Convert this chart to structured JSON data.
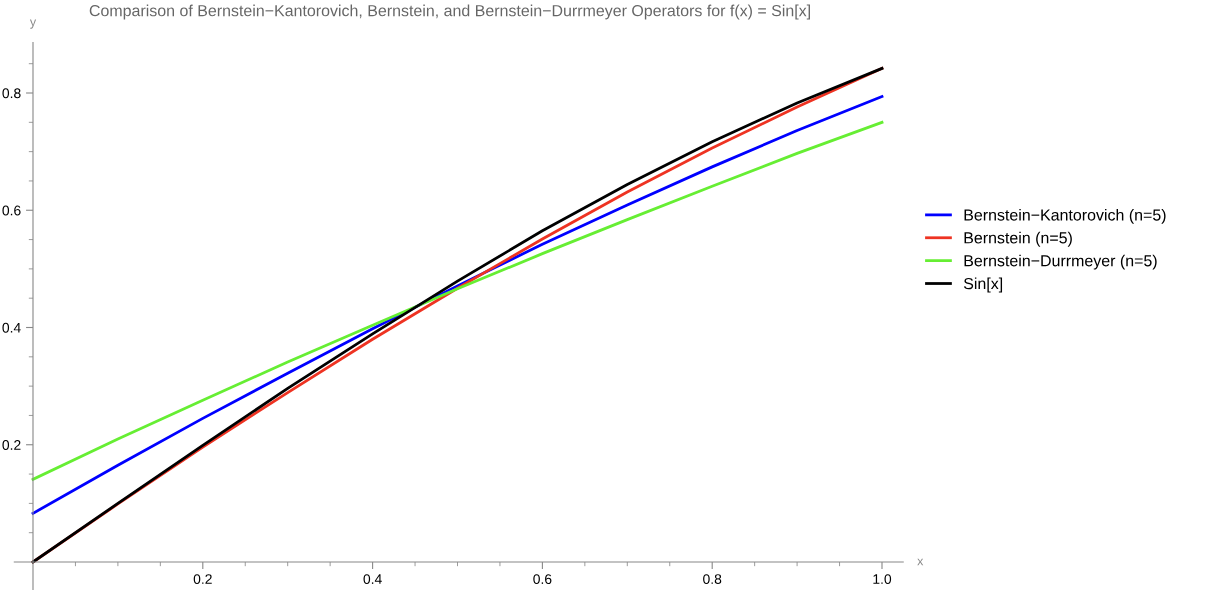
{
  "chart_data": {
    "type": "line",
    "title": "Comparison of Bernstein−Kantorovich, Bernstein, and Bernstein−Durrmeyer Operators for f(x) = Sin[x]",
    "xlabel": "x",
    "ylabel": "y",
    "x": [
      0,
      0.1,
      0.2,
      0.3,
      0.4,
      0.5,
      0.6,
      0.7,
      0.8,
      0.9,
      1.0
    ],
    "series": [
      {
        "name": "Bernstein−Kantorovich (n=5)",
        "color": "#0000ff",
        "values": [
          0.083,
          0.165,
          0.245,
          0.322,
          0.398,
          0.471,
          0.542,
          0.609,
          0.674,
          0.736,
          0.794
        ]
      },
      {
        "name": "Bernstein (n=5)",
        "color": "#ee3322",
        "values": [
          0,
          0.099,
          0.196,
          0.289,
          0.38,
          0.467,
          0.551,
          0.631,
          0.706,
          0.776,
          0.842
        ]
      },
      {
        "name": "Bernstein−Durrmeyer (n=5)",
        "color": "#66ee33",
        "values": [
          0.141,
          0.21,
          0.276,
          0.341,
          0.404,
          0.466,
          0.526,
          0.584,
          0.641,
          0.697,
          0.75
        ]
      },
      {
        "name": "Sin[x]",
        "color": "#000000",
        "values": [
          0,
          0.1,
          0.199,
          0.296,
          0.389,
          0.479,
          0.565,
          0.644,
          0.717,
          0.783,
          0.842
        ]
      }
    ],
    "xlim": [
      -0.022,
      1.025
    ],
    "ylim": [
      -0.048,
      0.886
    ],
    "xticks": [
      {
        "value": 0.05,
        "label": null
      },
      {
        "value": 0.1,
        "label": null
      },
      {
        "value": 0.15,
        "label": null
      },
      {
        "value": 0.2,
        "label": "0.2"
      },
      {
        "value": 0.25,
        "label": null
      },
      {
        "value": 0.3,
        "label": null
      },
      {
        "value": 0.35,
        "label": null
      },
      {
        "value": 0.4,
        "label": "0.4"
      },
      {
        "value": 0.45,
        "label": null
      },
      {
        "value": 0.5,
        "label": null
      },
      {
        "value": 0.55,
        "label": null
      },
      {
        "value": 0.6,
        "label": "0.6"
      },
      {
        "value": 0.65,
        "label": null
      },
      {
        "value": 0.7,
        "label": null
      },
      {
        "value": 0.75,
        "label": null
      },
      {
        "value": 0.8,
        "label": "0.8"
      },
      {
        "value": 0.85,
        "label": null
      },
      {
        "value": 0.9,
        "label": null
      },
      {
        "value": 0.95,
        "label": null
      },
      {
        "value": 1.0,
        "label": "1.0"
      }
    ],
    "yticks": [
      {
        "value": 0.05,
        "label": null
      },
      {
        "value": 0.1,
        "label": null
      },
      {
        "value": 0.15,
        "label": null
      },
      {
        "value": 0.2,
        "label": "0.2"
      },
      {
        "value": 0.25,
        "label": null
      },
      {
        "value": 0.3,
        "label": null
      },
      {
        "value": 0.35,
        "label": null
      },
      {
        "value": 0.4,
        "label": "0.4"
      },
      {
        "value": 0.45,
        "label": null
      },
      {
        "value": 0.5,
        "label": null
      },
      {
        "value": 0.55,
        "label": null
      },
      {
        "value": 0.6,
        "label": "0.6"
      },
      {
        "value": 0.65,
        "label": null
      },
      {
        "value": 0.7,
        "label": null
      },
      {
        "value": 0.75,
        "label": null
      },
      {
        "value": 0.8,
        "label": "0.8"
      },
      {
        "value": 0.85,
        "label": null
      }
    ],
    "grid": false,
    "legend": "right",
    "line_style": "solid",
    "marker": "none"
  }
}
